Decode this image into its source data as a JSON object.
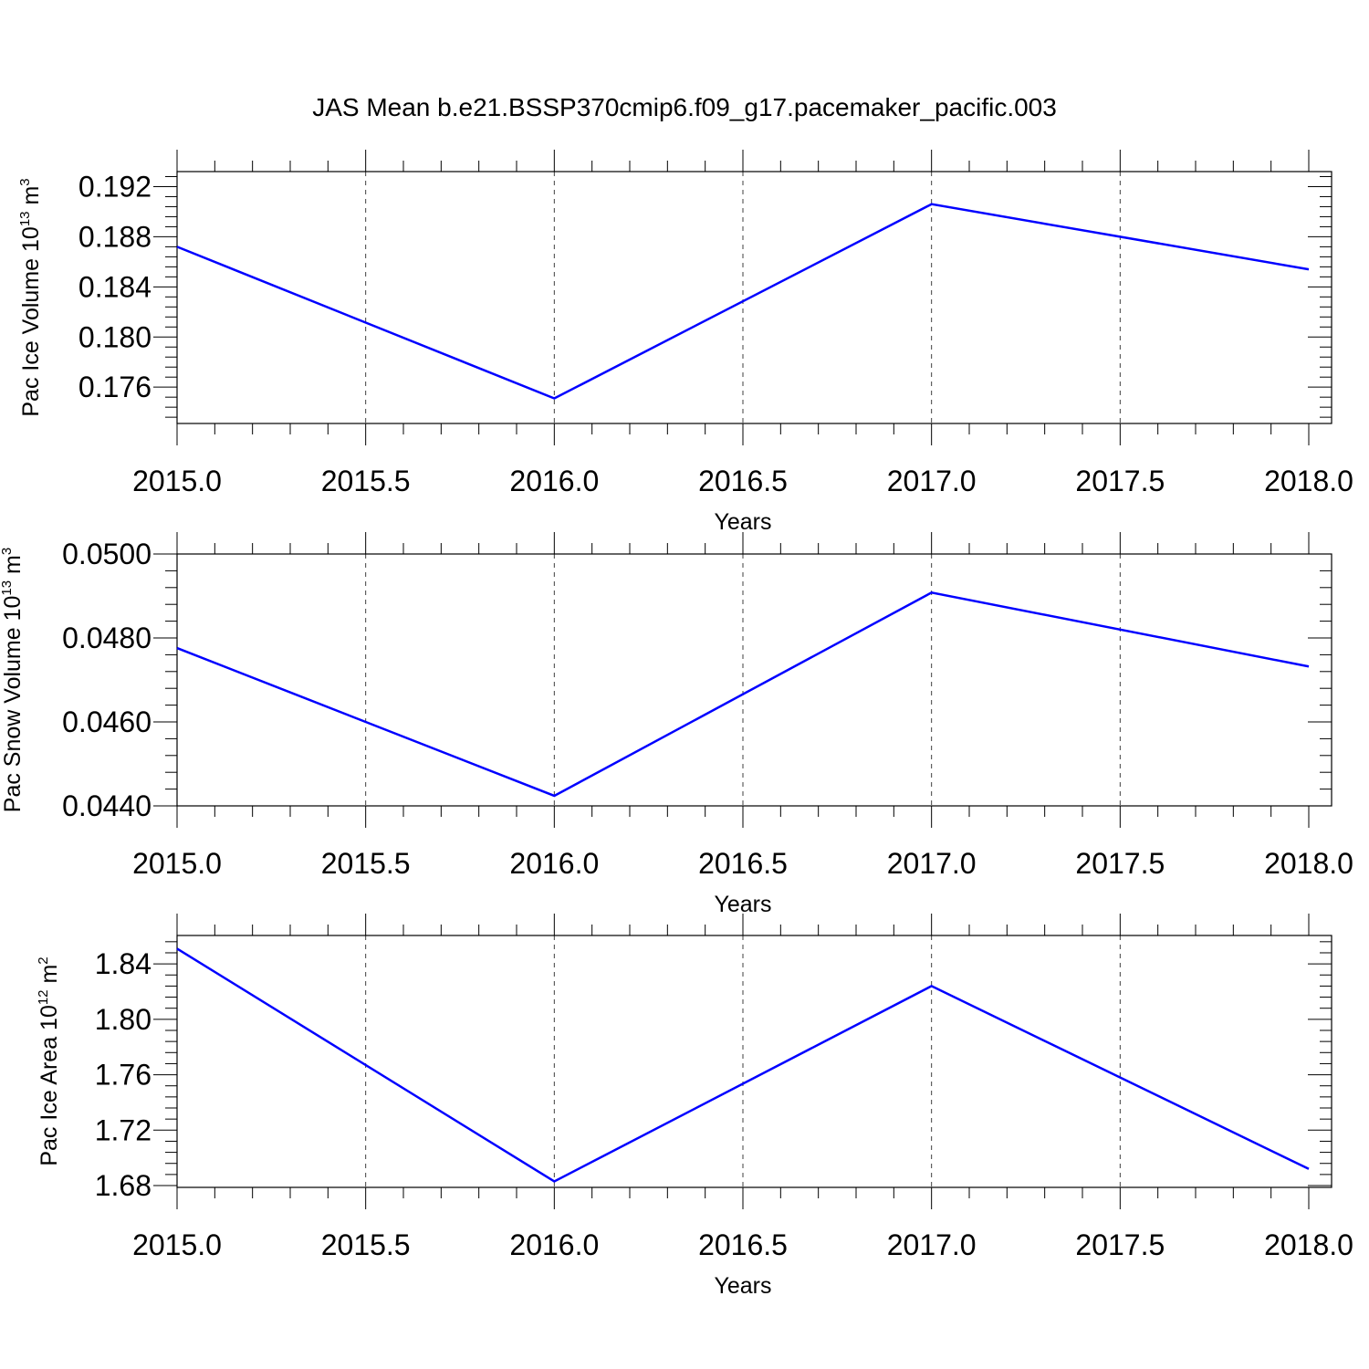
{
  "title": "JAS Mean b.e21.BSSP370cmip6.f09_g17.pacemaker_pacific.003",
  "colors": {
    "line": "#0000ff",
    "axes": "#000000",
    "background": "#ffffff"
  },
  "chart_data": [
    {
      "type": "line",
      "xlabel": "Years",
      "ylabel": {
        "main": "Pac Ice Volume 10",
        "sup": "13",
        "unit": " m",
        "unit_sup": "3"
      },
      "x": [
        2015,
        2016,
        2017,
        2018
      ],
      "values": [
        0.1872,
        0.1751,
        0.1906,
        0.1854
      ],
      "xlim": [
        2015,
        2018.15
      ],
      "ylim": [
        0.1731,
        0.1932
      ],
      "xticks": [
        "2015.0",
        "2015.5",
        "2016.0",
        "2016.5",
        "2017.0",
        "2017.5",
        "2018.0"
      ],
      "yticks": [
        "0.176",
        "0.180",
        "0.184",
        "0.188",
        "0.192"
      ],
      "grid": "vertical dashed"
    },
    {
      "type": "line",
      "xlabel": "Years",
      "ylabel": {
        "main": "Pac Snow Volume 10",
        "sup": "13",
        "unit": " m",
        "unit_sup": "3"
      },
      "x": [
        2015,
        2016,
        2017,
        2018
      ],
      "values": [
        0.04776,
        0.04424,
        0.04908,
        0.04732
      ],
      "xlim": [
        2015,
        2018.15
      ],
      "ylim": [
        0.044,
        0.05
      ],
      "xticks": [
        "2015.0",
        "2015.5",
        "2016.0",
        "2016.5",
        "2017.0",
        "2017.5",
        "2018.0"
      ],
      "yticks": [
        "0.0440",
        "0.0460",
        "0.0480",
        "0.0500"
      ],
      "grid": "vertical dashed"
    },
    {
      "type": "line",
      "xlabel": "Years",
      "ylabel": {
        "main": "Pac Ice Area 10",
        "sup": "12",
        "unit": " m",
        "unit_sup": "2"
      },
      "x": [
        2015,
        2016,
        2017,
        2018
      ],
      "values": [
        1.851,
        1.683,
        1.824,
        1.692
      ],
      "xlim": [
        2015,
        2018.15
      ],
      "ylim": [
        1.6787,
        1.8605
      ],
      "xticks": [
        "2015.0",
        "2015.5",
        "2016.0",
        "2016.5",
        "2017.0",
        "2017.5",
        "2018.0"
      ],
      "yticks": [
        "1.68",
        "1.72",
        "1.76",
        "1.80",
        "1.84"
      ],
      "grid": "vertical dashed"
    }
  ]
}
